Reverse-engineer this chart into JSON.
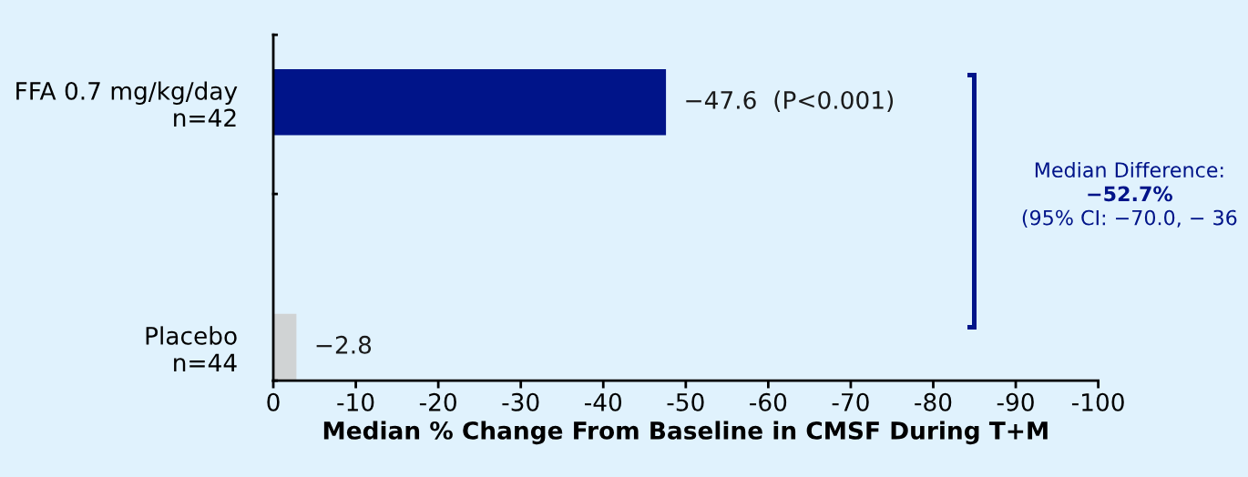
{
  "chart_data": {
    "type": "bar",
    "orientation": "horizontal",
    "categories": [
      "FFA 0.7 mg/kg/day\nn=42",
      "Placebo\nn=44"
    ],
    "values": [
      -47.6,
      -2.8
    ],
    "colors": [
      "#001489",
      "#d0d3d4"
    ],
    "value_labels": [
      "−47.6  (P<0.001)",
      "−2.8"
    ],
    "xlabel": "Median % Change From Baseline in CMSF During T+M",
    "xlim": [
      0,
      -100
    ],
    "xticks": [
      0,
      -10,
      -20,
      -30,
      -40,
      -50,
      -60,
      -70,
      -80,
      -90,
      -100
    ],
    "annotations": [
      "Median Difference:",
      "−52.7%",
      "(95% CI: −70.0, − 36"
    ],
    "grid": false,
    "legend": false
  }
}
